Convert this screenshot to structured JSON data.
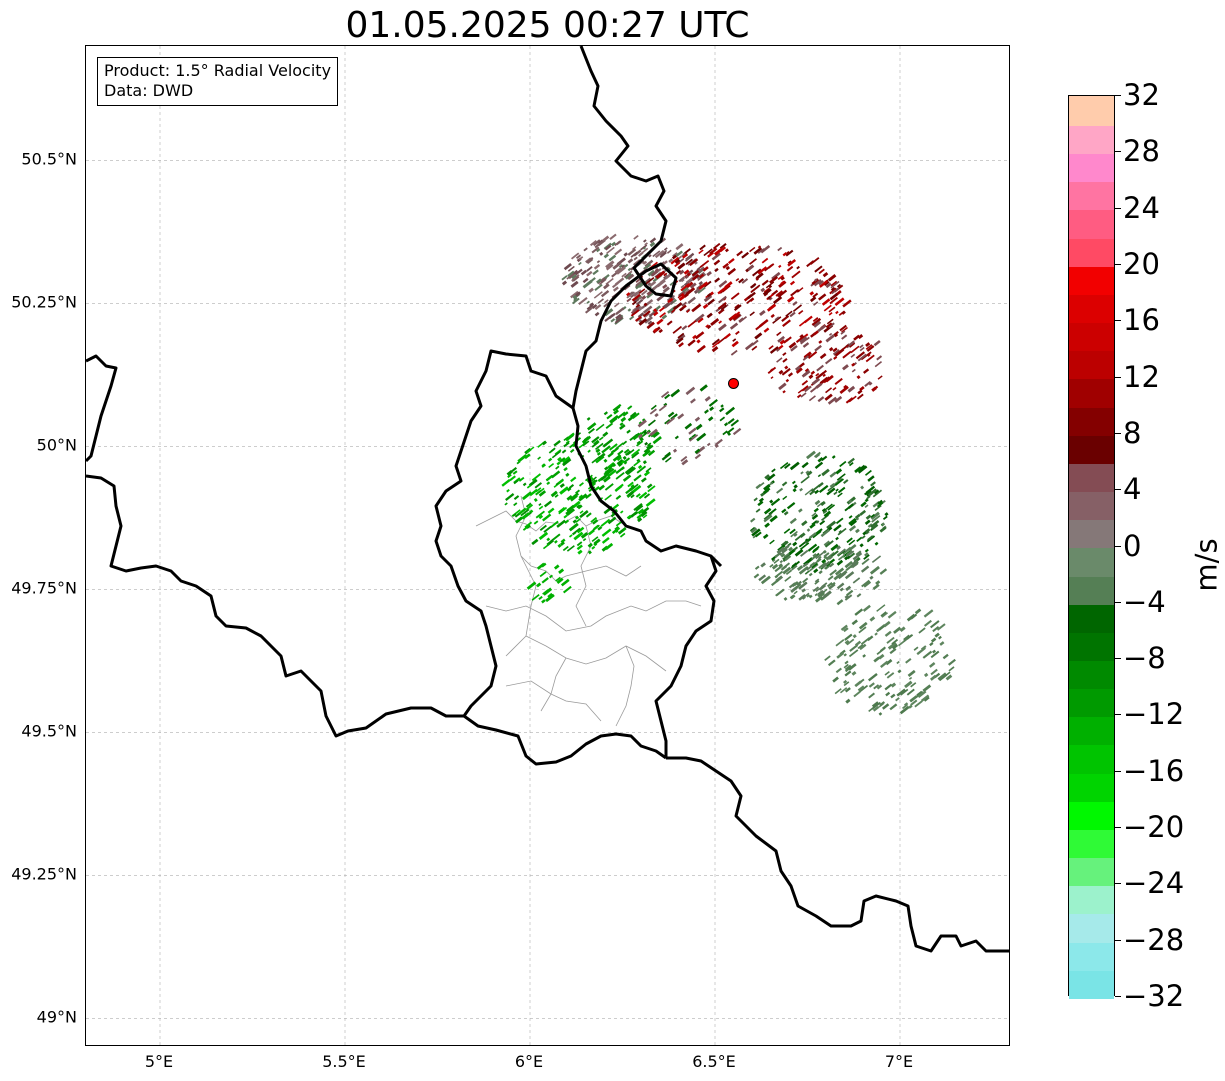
{
  "map": {
    "title": "01.05.2025 00:27 UTC",
    "info": {
      "product": "Product: 1.5° Radial Velocity",
      "data": "Data: DWD"
    },
    "lat_labels": [
      "50.5°N",
      "50.25°N",
      "50°N",
      "49.75°N",
      "49.5°N",
      "49.25°N",
      "49°N"
    ],
    "lat_values": [
      50.5,
      50.25,
      50.0,
      49.75,
      49.5,
      49.25,
      49.0
    ],
    "lon_labels": [
      "5°E",
      "5.5°E",
      "6°E",
      "6.5°E",
      "7°E"
    ],
    "lon_values": [
      5.0,
      5.5,
      6.0,
      6.5,
      7.0
    ],
    "extent": {
      "lon_min": 4.8,
      "lon_max": 7.3,
      "lat_min": 48.95,
      "lat_max": 50.7
    },
    "radar_site": {
      "lon": 6.55,
      "lat": 50.11,
      "color": "#ff0000"
    },
    "colorbar": {
      "unit": "m/s",
      "min": -32,
      "max": 32,
      "tick_labels": [
        "32",
        "28",
        "24",
        "20",
        "16",
        "12",
        "8",
        "4",
        "0",
        "−4",
        "−8",
        "−12",
        "−16",
        "−20",
        "−24",
        "−28",
        "−32"
      ],
      "tick_values": [
        32,
        28,
        24,
        20,
        16,
        12,
        8,
        4,
        0,
        -4,
        -8,
        -12,
        -16,
        -20,
        -24,
        -28,
        -32
      ],
      "colors": [
        "#7ae4e6",
        "#8ce8ea",
        "#a6eaea",
        "#9cf2cc",
        "#66f27c",
        "#2ffa36",
        "#00f800",
        "#00d400",
        "#00c400",
        "#00b000",
        "#009a00",
        "#008a00",
        "#007400",
        "#006600",
        "#557f55",
        "#6a8a6a",
        "#857878",
        "#866066",
        "#844c54",
        "#6a0000",
        "#840000",
        "#a00000",
        "#bc0000",
        "#cc0000",
        "#dc0000",
        "#f20000",
        "#ff4a64",
        "#ff5c82",
        "#ff74a2",
        "#ff88cc",
        "#ffa6c6",
        "#ffccac"
      ]
    }
  }
}
